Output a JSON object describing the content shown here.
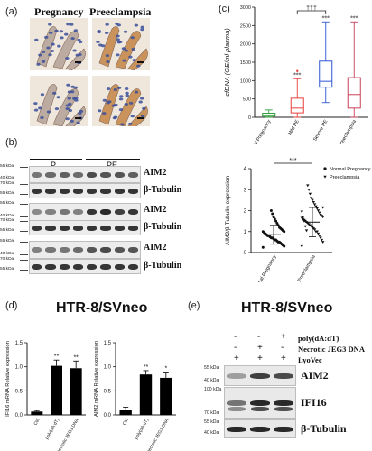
{
  "panel_a": {
    "label": "(a)",
    "col_titles": [
      "Pregnancy",
      "Preeclampsia"
    ]
  },
  "panel_b": {
    "label": "(b)",
    "group_labels": [
      "P",
      "PE"
    ],
    "blots": [
      {
        "protein": "AIM2",
        "mw": [
          "55 kDa",
          "40 kDa"
        ],
        "kind": "aim2a"
      },
      {
        "protein": "β-Tubulin",
        "mw": [
          "70 kDa",
          "55 kDa"
        ],
        "kind": "tub"
      },
      {
        "protein": "AIM2",
        "mw": [
          "55 kDa",
          "40 kDa"
        ],
        "kind": "aim2b"
      },
      {
        "protein": "β-Tubulin",
        "mw": [
          "70 kDa",
          "55 kDa"
        ],
        "kind": "tub"
      },
      {
        "protein": "AIM2",
        "mw": [
          "55 kDa",
          "40 kDa"
        ],
        "kind": "aim2c"
      },
      {
        "protein": "β-Tubulin",
        "mw": [
          "70 kDa",
          "55 kDa"
        ],
        "kind": "tub"
      }
    ]
  },
  "panel_c": {
    "label": "(c)",
    "sig_sev_vs_mild": "†††",
    "sig_stars": "***",
    "chart_data": {
      "type": "box",
      "ylabel": "cfDNA (GE/ml plasma)",
      "ylim": [
        0,
        3000
      ],
      "yticks": [
        "0",
        "500",
        "1000",
        "1500",
        "2000",
        "2500",
        "3000"
      ],
      "categories": [
        "Normal Pregnancy",
        "Mild PE",
        "Severe PE",
        "All Preeclampsia"
      ],
      "colors": [
        "#2e9e3a",
        "#e8403a",
        "#2f55d4",
        "#c8405a"
      ],
      "boxes": [
        {
          "min": 0,
          "q1": 30,
          "median": 60,
          "q3": 110,
          "max": 200
        },
        {
          "min": 0,
          "q1": 120,
          "median": 250,
          "q3": 520,
          "max": 1050
        },
        {
          "min": 400,
          "q1": 820,
          "median": 980,
          "q3": 1530,
          "max": 2600
        },
        {
          "min": 0,
          "q1": 250,
          "median": 620,
          "q3": 1080,
          "max": 2600
        }
      ],
      "outliers": [
        null,
        1260,
        null,
        null
      ],
      "annotations": [
        "",
        "***",
        "***",
        "***"
      ]
    }
  },
  "panel_c2": {
    "sig": "***",
    "chart_data": {
      "type": "scatter",
      "ylabel": "AIM2/β-Tubulin expression",
      "ylim": [
        0,
        4
      ],
      "yticks": [
        "0",
        "1",
        "2",
        "3",
        "4"
      ],
      "categories": [
        "Normal Pregnancy",
        "Preeclampsia"
      ],
      "legend": [
        "Normal Pregnancy",
        "Preeclampsia"
      ],
      "means": [
        0.85,
        1.45
      ],
      "sds": [
        0.45,
        0.7
      ],
      "series": [
        {
          "name": "Normal Pregnancy",
          "values": [
            0.25,
            0.3,
            0.35,
            0.4,
            0.45,
            0.5,
            0.5,
            0.55,
            0.6,
            0.6,
            0.65,
            0.7,
            0.7,
            0.75,
            0.8,
            0.8,
            0.85,
            0.9,
            0.95,
            1.0,
            1.0,
            1.05,
            1.1,
            1.15,
            1.2,
            1.3,
            1.4,
            1.5,
            1.6,
            1.7,
            1.85,
            2.0
          ]
        },
        {
          "name": "Preeclampsia",
          "values": [
            0.3,
            0.5,
            0.6,
            0.7,
            0.8,
            0.9,
            1.0,
            1.0,
            1.1,
            1.15,
            1.2,
            1.25,
            1.3,
            1.35,
            1.4,
            1.45,
            1.5,
            1.55,
            1.6,
            1.65,
            1.7,
            1.75,
            1.8,
            1.9,
            2.0,
            2.1,
            2.2,
            2.3,
            2.4,
            2.5,
            2.6,
            2.8,
            3.0,
            3.2,
            1.05,
            1.25,
            1.5,
            1.7,
            1.95,
            2.15
          ]
        }
      ]
    }
  },
  "panel_d": {
    "label": "(d)",
    "title": "HTR-8/SVneo",
    "charts": [
      {
        "type": "bar",
        "ylabel": "IFI16 mRNA Relative expression",
        "ylim": [
          0,
          1.5
        ],
        "yticks": [
          "0.0",
          "0.5",
          "1.0",
          "1.5"
        ],
        "categories": [
          "Ctrl",
          "poly(dA:dT)",
          "necrotic JEG3 DNA"
        ],
        "values": [
          0.07,
          1.02,
          0.97
        ],
        "errors": [
          0.02,
          0.12,
          0.15
        ],
        "annotations": [
          "",
          "**",
          "**"
        ]
      },
      {
        "type": "bar",
        "ylabel": "AIM2 mRNA Relative expression",
        "ylim": [
          0,
          1.5
        ],
        "yticks": [
          "0.0",
          "0.5",
          "1.0",
          "1.5"
        ],
        "categories": [
          "Ctrl",
          "poly(dA:dT)",
          "necrotic JEG3 DNA"
        ],
        "values": [
          0.1,
          0.84,
          0.77
        ],
        "errors": [
          0.06,
          0.08,
          0.12
        ],
        "annotations": [
          "",
          "**",
          "*"
        ]
      }
    ]
  },
  "panel_e": {
    "label": "(e)",
    "title": "HTR-8/SVneo",
    "conditions": [
      {
        "label": "poly(dA:dT)",
        "signs": [
          "-",
          "-",
          "+"
        ]
      },
      {
        "label": "Necrotic JEG3 DNA",
        "signs": [
          "-",
          "+",
          "-"
        ]
      },
      {
        "label": "LyoVec",
        "signs": [
          "+",
          "+",
          "+"
        ]
      }
    ],
    "blots": [
      {
        "protein": "AIM2",
        "mw": [
          "55 kDa",
          "40 kDa"
        ]
      },
      {
        "protein": "IFI16",
        "mw": [
          "100 kDa",
          "70 kDa"
        ]
      },
      {
        "protein": "β-Tubulin",
        "mw": [
          "55 kDa",
          "40 kDa"
        ]
      }
    ]
  }
}
